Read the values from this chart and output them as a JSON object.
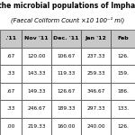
{
  "title1": "the microbial populations of Imphal",
  "title2": "(Faecal Coliform Count ×10 100⁻¹ ml)",
  "columns": [
    ".'11",
    "Nov '11",
    "Dec. '11",
    "Jan '12",
    "Feb"
  ],
  "rows": [
    [
      ".67",
      "120.00",
      "106.67",
      "237.33",
      "126."
    ],
    [
      ".33",
      "143.33",
      "119.33",
      "259.33",
      "159."
    ],
    [
      ".67",
      "149.33",
      "126.67",
      "346.67",
      "186."
    ],
    [
      ".33",
      "246.67",
      "189.33",
      "297.33",
      "133."
    ],
    [
      ".00",
      "219.33",
      "160.00",
      "240.00",
      "126."
    ]
  ],
  "header_bg": "#c8c8c8",
  "row_bg": "#ffffff",
  "border_color": "#444444",
  "text_color": "#000000",
  "title_fontsize": 5.5,
  "subtitle_fontsize": 4.8,
  "header_fontsize": 4.5,
  "cell_fontsize": 4.2,
  "fig_width": 1.5,
  "fig_height": 1.5,
  "dpi": 100
}
